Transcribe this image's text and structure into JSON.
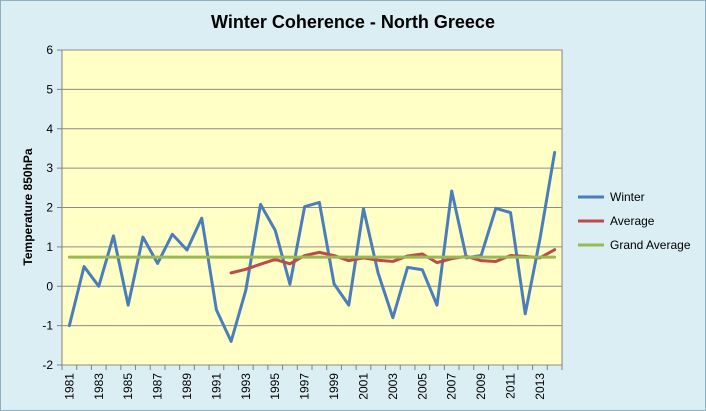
{
  "chart_data": {
    "type": "line",
    "title": "Winter Coherence - North Greece",
    "xlabel": "",
    "ylabel": "Temperature 850hPa",
    "ylim": [
      -2,
      6
    ],
    "yticks": [
      -2,
      -1,
      0,
      1,
      2,
      3,
      4,
      5,
      6
    ],
    "grid": true,
    "legend_position": "right",
    "x": [
      1981,
      1982,
      1983,
      1984,
      1985,
      1986,
      1987,
      1988,
      1989,
      1990,
      1991,
      1992,
      1993,
      1994,
      1995,
      1996,
      1997,
      1998,
      1999,
      2000,
      2001,
      2002,
      2003,
      2004,
      2005,
      2006,
      2007,
      2008,
      2009,
      2010,
      2011,
      2012,
      2013,
      2014
    ],
    "xtick_labels": [
      "1981",
      "1983",
      "1985",
      "1987",
      "1989",
      "1991",
      "1993",
      "1995",
      "1997",
      "1999",
      "2001",
      "2003",
      "2005",
      "2007",
      "2009",
      "2011",
      "2013"
    ],
    "series": [
      {
        "name": "Winter",
        "color": "#4a7ebb",
        "values": [
          -1.0,
          0.5,
          0.0,
          1.28,
          -0.48,
          1.25,
          0.58,
          1.32,
          0.92,
          1.73,
          -0.6,
          -1.4,
          -0.1,
          2.08,
          1.42,
          0.05,
          2.02,
          2.13,
          0.06,
          -0.48,
          1.97,
          0.33,
          -0.8,
          0.48,
          0.42,
          -0.48,
          2.42,
          0.72,
          0.78,
          1.98,
          1.87,
          -0.7,
          1.2,
          3.4
        ]
      },
      {
        "name": "Average",
        "color": "#be4b48",
        "values": [
          null,
          null,
          null,
          null,
          null,
          null,
          null,
          null,
          null,
          null,
          null,
          0.34,
          0.43,
          0.56,
          0.68,
          0.57,
          0.78,
          0.86,
          0.78,
          0.65,
          0.72,
          0.66,
          0.63,
          0.77,
          0.82,
          0.6,
          0.7,
          0.76,
          0.65,
          0.63,
          0.78,
          0.76,
          0.72,
          0.93
        ]
      },
      {
        "name": "Grand Average",
        "color": "#98b954",
        "values": [
          0.74,
          0.74,
          0.74,
          0.74,
          0.74,
          0.74,
          0.74,
          0.74,
          0.74,
          0.74,
          0.74,
          0.74,
          0.74,
          0.74,
          0.74,
          0.74,
          0.74,
          0.74,
          0.74,
          0.74,
          0.74,
          0.74,
          0.74,
          0.74,
          0.74,
          0.74,
          0.74,
          0.74,
          0.74,
          0.74,
          0.74,
          0.74,
          0.74,
          0.74
        ]
      }
    ]
  }
}
